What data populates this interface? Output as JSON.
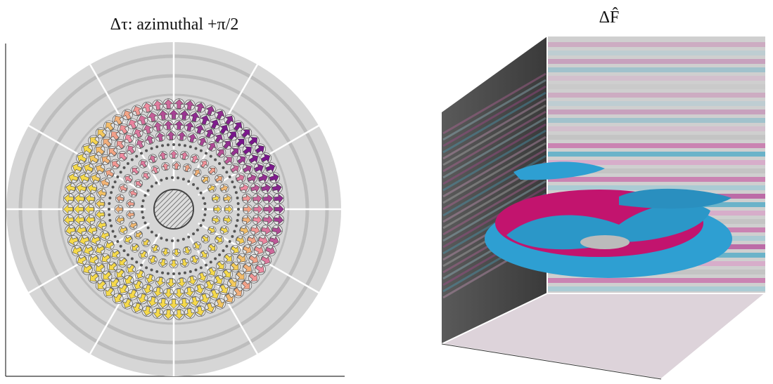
{
  "panels": [
    {
      "title": "Δτ: azimuthal +π/2"
    },
    {
      "title": "ΔF̂"
    }
  ]
}
